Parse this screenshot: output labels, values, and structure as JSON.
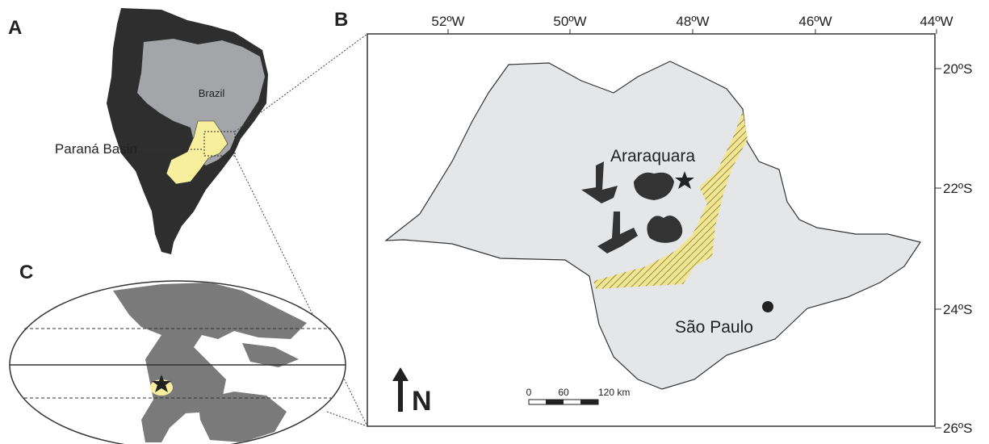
{
  "panels": {
    "a": {
      "label": "A",
      "country": "Brazil",
      "basin": "Paraná Basin"
    },
    "b": {
      "label": "B",
      "longitudes": [
        "52ºW",
        "50ºW",
        "48ºW",
        "46ºW",
        "44ºW"
      ],
      "latitudes": [
        "20ºS",
        "22ºS",
        "24ºS",
        "26ºS"
      ],
      "places": [
        "Araraquara",
        "São Paulo"
      ],
      "north": "N",
      "scale": [
        "0",
        "60",
        "120 km"
      ]
    },
    "c": {
      "label": "C"
    }
  }
}
